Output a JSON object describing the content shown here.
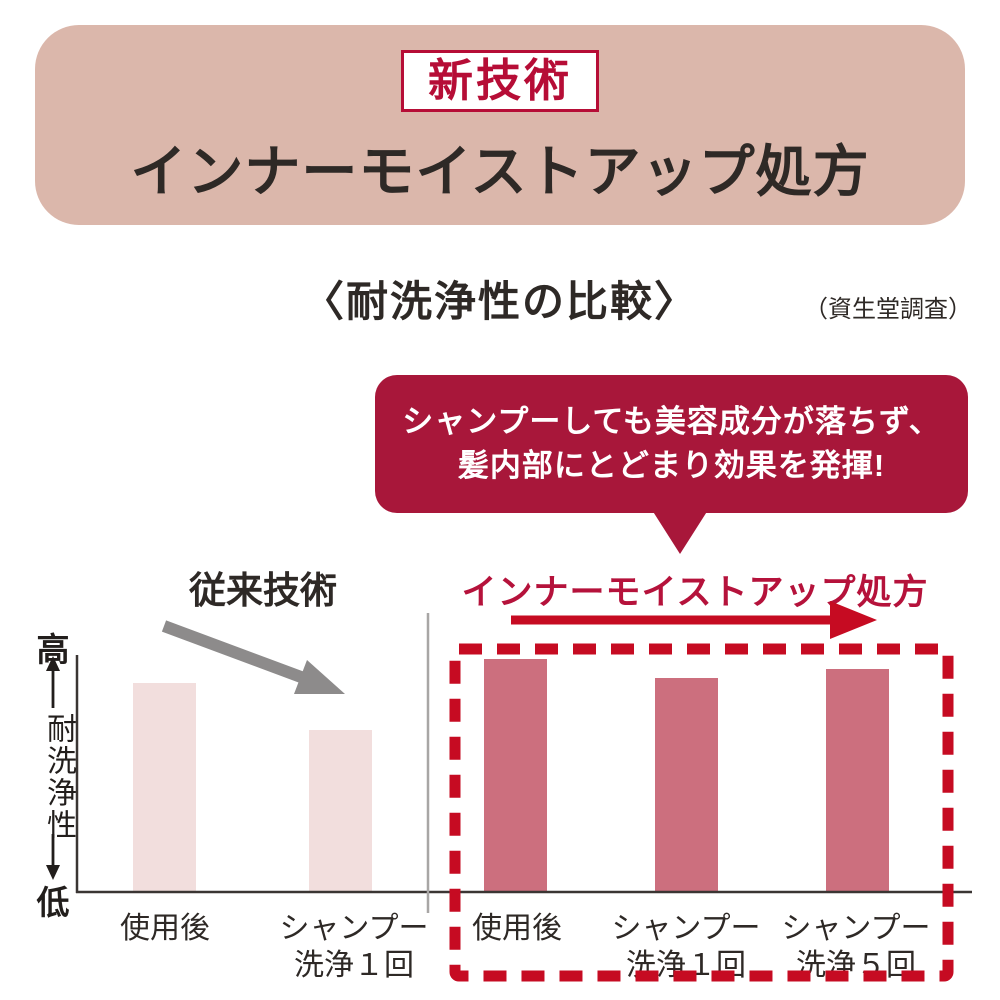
{
  "banner": {
    "badge": "新技術",
    "title": "インナーモイストアップ処方",
    "bg_color": "#dbb7ab",
    "badge_color": "#b60d36"
  },
  "heading": {
    "title": "〈耐洗浄性の比較〉",
    "note": "（資生堂調査）"
  },
  "callout": {
    "line1": "シャンプーしても美容成分が落ちず、",
    "line2": "髪内部にとどまり効果を発揮!",
    "bg_color": "#a8173a",
    "text_color": "#ffffff"
  },
  "chart_data": {
    "type": "bar",
    "title": "耐洗浄性の比較",
    "ylabel": "耐洗浄性",
    "y_axis": {
      "top_label": "高",
      "bottom_label": "低"
    },
    "ylim": [
      0,
      100
    ],
    "grid": false,
    "legend_position": "above-groups",
    "groups": [
      {
        "name": "従来技術",
        "label_color": "#2e2926",
        "bar_color": "#f2dedd",
        "categories": [
          "使用後",
          "シャンプー\n洗浄１回"
        ],
        "values": [
          89,
          69
        ],
        "trend": "declining",
        "trend_marker": "gray-diagonal-down-arrow"
      },
      {
        "name": "インナーモイストアップ処方",
        "label_color": "#b5123b",
        "bar_color": "#cc6f7e",
        "categories": [
          "使用後",
          "シャンプー\n洗浄１回",
          "シャンプー\n洗浄５回"
        ],
        "values": [
          99,
          91,
          95
        ],
        "trend": "sustained-high",
        "trend_marker": "red-right-arrow",
        "highlight": "red-dashed-box"
      }
    ],
    "accent_colors": {
      "red_arrow": "#c60b22",
      "dashed_box": "#c60b22",
      "gray_arrow": "#8d8b8b",
      "axis": "#3a3533",
      "divider": "#a8a6a5"
    }
  }
}
